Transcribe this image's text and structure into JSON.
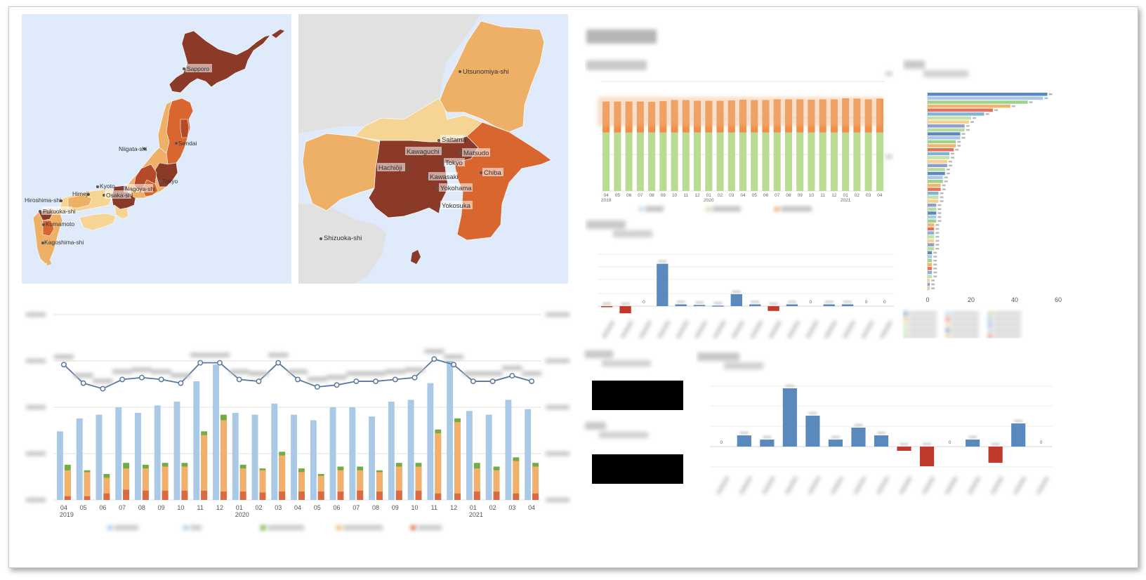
{
  "maps": {
    "japan": {
      "bg": "#dfeafb",
      "cities": [
        "Sapporo",
        "Sendai",
        "Niigata-shi",
        "Tokyo",
        "Kyoto",
        "Nagoya-shi",
        "Osaka-shi",
        "Himeji",
        "Hiroshima-shi",
        "Fukuoka-shi",
        "Kumamoto",
        "Kagoshima-shi"
      ]
    },
    "kanto": {
      "bg": "#dfeafb",
      "cities": [
        "Utsunomiya-shi",
        "Saitama",
        "Kawaguchi",
        "Matsudo",
        "Tokyo",
        "Hachiōji",
        "Kawasaki",
        "Chiba",
        "Yokohama",
        "Yokosuka",
        "Shizuoka-shi"
      ]
    },
    "colors": {
      "dark": "#8c3a28",
      "mid_dark": "#b54a2b",
      "mid": "#d9652f",
      "light": "#eeb066",
      "lightest": "#f6d493",
      "land_gray": "#e1e1e1"
    }
  },
  "chart_data": [
    {
      "type": "bar",
      "id": "monthly-combo",
      "categories": [
        "04",
        "05",
        "06",
        "07",
        "08",
        "09",
        "10",
        "11",
        "12",
        "01",
        "02",
        "03",
        "04",
        "05",
        "06",
        "07",
        "08",
        "09",
        "10",
        "11",
        "12",
        "01",
        "02",
        "03",
        "04"
      ],
      "year_labels": [
        "2019",
        "2020",
        "2021"
      ],
      "series": [
        {
          "values": [
            37,
            44,
            46,
            50,
            47,
            51,
            53,
            64,
            73,
            47,
            46,
            52,
            46,
            43,
            50,
            50,
            45,
            53,
            54,
            63,
            75,
            48,
            46,
            54,
            49
          ],
          "color": "#a9c9e6"
        },
        {
          "values": [
            19,
            16,
            14,
            20,
            19,
            20,
            20,
            37,
            46,
            19,
            17,
            26,
            17,
            14,
            18,
            18,
            16,
            20,
            20,
            38,
            44,
            20,
            18,
            23,
            20
          ],
          "color": "#73ac44"
        },
        {
          "values": [
            16,
            15,
            12,
            17,
            17,
            18,
            18,
            35,
            43,
            17,
            16,
            24,
            15,
            13,
            16,
            16,
            15,
            18,
            18,
            36,
            42,
            17,
            16,
            21,
            18
          ],
          "color": "#f2b06c"
        },
        {
          "values": [
            2,
            2,
            3.5,
            5.5,
            5,
            5,
            5,
            5,
            4.5,
            4.5,
            4,
            4.5,
            4.5,
            4.5,
            4.5,
            5,
            4.5,
            5,
            5,
            3.5,
            3.5,
            4.5,
            4.5,
            3.5,
            3.5
          ],
          "color": "#db6a45"
        }
      ],
      "line": {
        "values": [
          73,
          63,
          60,
          65,
          66,
          65,
          63,
          74,
          74,
          65,
          64,
          74,
          65,
          61,
          62,
          64,
          64,
          65,
          66,
          76,
          73,
          64,
          64,
          67,
          64
        ],
        "color": "#5878a0"
      },
      "ylim": [
        0,
        100
      ],
      "colors": {
        "series_4": "#da6a44",
        "line": "#5878a0"
      }
    },
    {
      "type": "bar",
      "id": "stacked-monthly",
      "categories": [
        "04",
        "05",
        "06",
        "07",
        "08",
        "09",
        "10",
        "11",
        "12",
        "01",
        "02",
        "03",
        "04",
        "05",
        "06",
        "07",
        "08",
        "09",
        "10",
        "11",
        "12",
        "01",
        "02",
        "03",
        "04"
      ],
      "year_labels": [
        "2019",
        "2020",
        "2021"
      ],
      "series": [
        {
          "values": [
            160,
            160,
            160,
            160,
            160,
            160,
            160,
            160,
            160,
            160,
            160,
            160,
            160,
            160,
            160,
            160,
            160,
            160,
            160,
            160,
            160,
            160,
            160,
            160,
            160
          ],
          "color": "#b9dc93"
        },
        {
          "values": [
            85,
            85,
            85,
            85,
            84,
            86,
            89,
            89,
            87,
            87,
            87,
            88,
            90,
            89,
            89,
            91,
            91,
            91,
            90,
            91,
            91,
            94,
            93,
            91,
            93
          ],
          "color": "#ef8f4a"
        }
      ],
      "ylim": [
        0,
        300
      ]
    },
    {
      "type": "bar",
      "id": "diff-bars-top",
      "values": [
        -1,
        -12,
        0,
        71,
        3,
        2,
        1,
        20,
        3,
        -8,
        3,
        0,
        3,
        3,
        0,
        0
      ],
      "data_labels": [
        "",
        "",
        "0",
        "",
        "",
        "",
        "",
        "",
        "",
        "",
        "",
        "0",
        "",
        "",
        "0",
        "0"
      ],
      "colors": {
        "positive": "#5a89bd",
        "negative": "#c0392b"
      }
    },
    {
      "type": "bar",
      "id": "diff-bars-bottom",
      "values": [
        0,
        1.6,
        1,
        8.3,
        4.4,
        1,
        2.7,
        1.6,
        -0.6,
        -2.8,
        0,
        1,
        -2.3,
        3.3,
        0
      ],
      "data_labels": [
        "0",
        "",
        "",
        "",
        "",
        "",
        "",
        "",
        "",
        "",
        "0",
        "",
        "",
        "",
        "0"
      ],
      "colors": {
        "positive": "#5a89bd",
        "negative": "#c0392b"
      }
    },
    {
      "type": "bar",
      "id": "ranked-horizontal",
      "values": [
        55,
        53,
        46,
        38,
        30,
        26,
        20,
        19,
        17,
        17,
        15,
        15,
        13,
        13,
        12,
        10,
        10,
        9,
        9,
        8,
        8,
        7,
        7,
        6,
        6,
        5,
        5,
        5,
        4,
        4,
        4,
        4,
        4,
        3,
        3,
        3,
        3,
        3,
        3,
        3,
        2,
        2,
        2,
        2,
        2,
        2,
        2,
        1,
        1,
        1
      ],
      "xlim": [
        0,
        60
      ],
      "xticks": [
        "0",
        "20",
        "40",
        "60"
      ],
      "palette": [
        "#5a89bd",
        "#a8c8e6",
        "#9fd08c",
        "#f2b36c",
        "#e6705a",
        "#7fb6d8",
        "#c2e0a8",
        "#f7cf8e",
        "#8c9ec9",
        "#b5dba0"
      ]
    }
  ]
}
